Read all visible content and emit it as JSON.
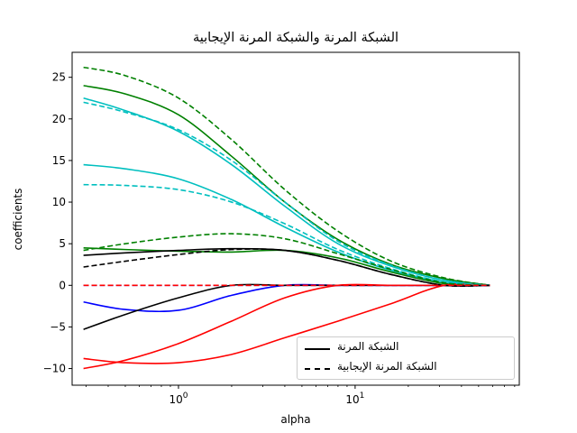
{
  "chart_data": {
    "type": "line",
    "title": "الشبكة المرنة والشبكة المرنة الإيجابية",
    "xlabel": "alpha",
    "ylabel": "coefficients",
    "xscale": "log",
    "xlim": [
      0.25,
      85
    ],
    "ylim": [
      -12,
      28
    ],
    "x_ticks": [
      {
        "value": 1,
        "label": "10^0",
        "base": "10",
        "exp": "0"
      },
      {
        "value": 10,
        "label": "10^1",
        "base": "10",
        "exp": "1"
      }
    ],
    "y_ticks": [
      -10,
      -5,
      0,
      5,
      10,
      15,
      20,
      25
    ],
    "y_tick_labels": [
      "−10",
      "−5",
      "0",
      "5",
      "10",
      "15",
      "20",
      "25"
    ],
    "grid": false,
    "legend_position": "lower right",
    "legend": [
      {
        "label": "الشبكة المرنة",
        "style": "solid",
        "color": "#000000"
      },
      {
        "label": "الشبكة المرنة الإيجابية",
        "style": "dashed",
        "color": "#000000"
      }
    ],
    "x": [
      0.29,
      0.5,
      1.0,
      2.0,
      4.0,
      8.0,
      16.0,
      32.0,
      58.0
    ],
    "series": [
      {
        "name": "enet coef 1",
        "color": "#008000",
        "style": "solid",
        "values": [
          24.0,
          23.0,
          20.5,
          15.5,
          10.0,
          5.5,
          2.5,
          0.8,
          0
        ]
      },
      {
        "name": "enet coef 2",
        "color": "#00bfbf",
        "style": "solid",
        "values": [
          22.5,
          21.0,
          18.5,
          14.5,
          9.5,
          5.0,
          2.3,
          0.6,
          0
        ]
      },
      {
        "name": "enet coef 3",
        "color": "#00bfbf",
        "style": "solid",
        "values": [
          14.5,
          14.0,
          12.8,
          10.3,
          7.0,
          4.0,
          1.8,
          0.4,
          0
        ]
      },
      {
        "name": "enet coef 4",
        "color": "#008000",
        "style": "solid",
        "values": [
          4.5,
          4.3,
          4.1,
          4.0,
          4.2,
          3.3,
          1.6,
          0.2,
          0
        ]
      },
      {
        "name": "enet coef 5",
        "color": "#000000",
        "style": "solid",
        "values": [
          3.6,
          3.9,
          4.2,
          4.4,
          4.2,
          3.0,
          1.3,
          0,
          0
        ]
      },
      {
        "name": "enet coef 6",
        "color": "#0000ff",
        "style": "solid",
        "values": [
          -2.0,
          -2.9,
          -3.0,
          -1.2,
          0,
          0,
          0,
          0,
          0
        ]
      },
      {
        "name": "enet coef 7",
        "color": "#000000",
        "style": "solid",
        "values": [
          -5.3,
          -3.5,
          -1.5,
          0,
          0,
          0,
          0,
          0,
          0
        ]
      },
      {
        "name": "enet coef 8",
        "color": "#ff0000",
        "style": "solid",
        "values": [
          -8.8,
          -9.3,
          -9.3,
          -8.3,
          -6.3,
          -4.3,
          -2.2,
          0,
          0
        ]
      },
      {
        "name": "enet coef 9",
        "color": "#ff0000",
        "style": "solid",
        "values": [
          -10.0,
          -9.0,
          -7.0,
          -4.3,
          -1.5,
          0,
          0,
          0,
          0
        ]
      },
      {
        "name": "positive enet coef 1",
        "color": "#008000",
        "style": "dashed",
        "values": [
          26.2,
          25.2,
          22.5,
          17.5,
          11.5,
          6.5,
          2.9,
          0.9,
          0
        ]
      },
      {
        "name": "positive enet coef 2",
        "color": "#00bfbf",
        "style": "dashed",
        "values": [
          22.0,
          20.8,
          18.7,
          15.0,
          10.0,
          5.3,
          2.4,
          0.6,
          0
        ]
      },
      {
        "name": "positive enet coef 3",
        "color": "#00bfbf",
        "style": "dashed",
        "values": [
          12.1,
          12.0,
          11.5,
          10.0,
          7.4,
          4.3,
          2.0,
          0.4,
          0
        ]
      },
      {
        "name": "positive enet coef 4",
        "color": "#008000",
        "style": "dashed",
        "values": [
          4.2,
          5.0,
          5.8,
          6.2,
          5.6,
          3.8,
          1.9,
          0.3,
          0
        ]
      },
      {
        "name": "positive enet coef 5",
        "color": "#000000",
        "style": "dashed",
        "values": [
          2.2,
          2.9,
          3.7,
          4.3,
          4.2,
          3.0,
          1.3,
          0,
          0
        ]
      },
      {
        "name": "positive enet coef zero (blue)",
        "color": "#0000ff",
        "style": "dashed",
        "values": [
          0,
          0,
          0,
          0,
          0,
          0,
          0,
          0,
          0
        ]
      },
      {
        "name": "positive enet coef zero (red)",
        "color": "#ff0000",
        "style": "dashed",
        "values": [
          0,
          0,
          0,
          0,
          0,
          0,
          0,
          0,
          0
        ]
      }
    ]
  }
}
